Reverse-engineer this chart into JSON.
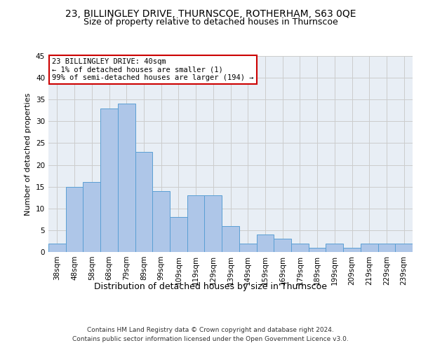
{
  "title1": "23, BILLINGLEY DRIVE, THURNSCOE, ROTHERHAM, S63 0QE",
  "title2": "Size of property relative to detached houses in Thurnscoe",
  "xlabel": "Distribution of detached houses by size in Thurnscoe",
  "ylabel": "Number of detached properties",
  "footer1": "Contains HM Land Registry data © Crown copyright and database right 2024.",
  "footer2": "Contains public sector information licensed under the Open Government Licence v3.0.",
  "annotation_line1": "23 BILLINGLEY DRIVE: 40sqm",
  "annotation_line2": "← 1% of detached houses are smaller (1)",
  "annotation_line3": "99% of semi-detached houses are larger (194) →",
  "bar_labels": [
    "38sqm",
    "48sqm",
    "58sqm",
    "68sqm",
    "79sqm",
    "89sqm",
    "99sqm",
    "109sqm",
    "119sqm",
    "129sqm",
    "139sqm",
    "149sqm",
    "159sqm",
    "169sqm",
    "179sqm",
    "189sqm",
    "199sqm",
    "209sqm",
    "219sqm",
    "229sqm",
    "239sqm"
  ],
  "bar_values": [
    2,
    15,
    16,
    33,
    34,
    23,
    14,
    8,
    13,
    13,
    6,
    2,
    4,
    3,
    2,
    1,
    2,
    1,
    2,
    2,
    2
  ],
  "bar_color": "#aec6e8",
  "bar_edge_color": "#5a9fd4",
  "ylim": [
    0,
    45
  ],
  "yticks": [
    0,
    5,
    10,
    15,
    20,
    25,
    30,
    35,
    40,
    45
  ],
  "grid_color": "#cccccc",
  "bg_color": "#e8eef5",
  "annotation_box_color": "#ffffff",
  "annotation_box_edge": "#cc0000",
  "title1_fontsize": 10,
  "title2_fontsize": 9,
  "xlabel_fontsize": 9,
  "ylabel_fontsize": 8,
  "tick_fontsize": 7.5,
  "annotation_fontsize": 7.5,
  "footer_fontsize": 6.5
}
